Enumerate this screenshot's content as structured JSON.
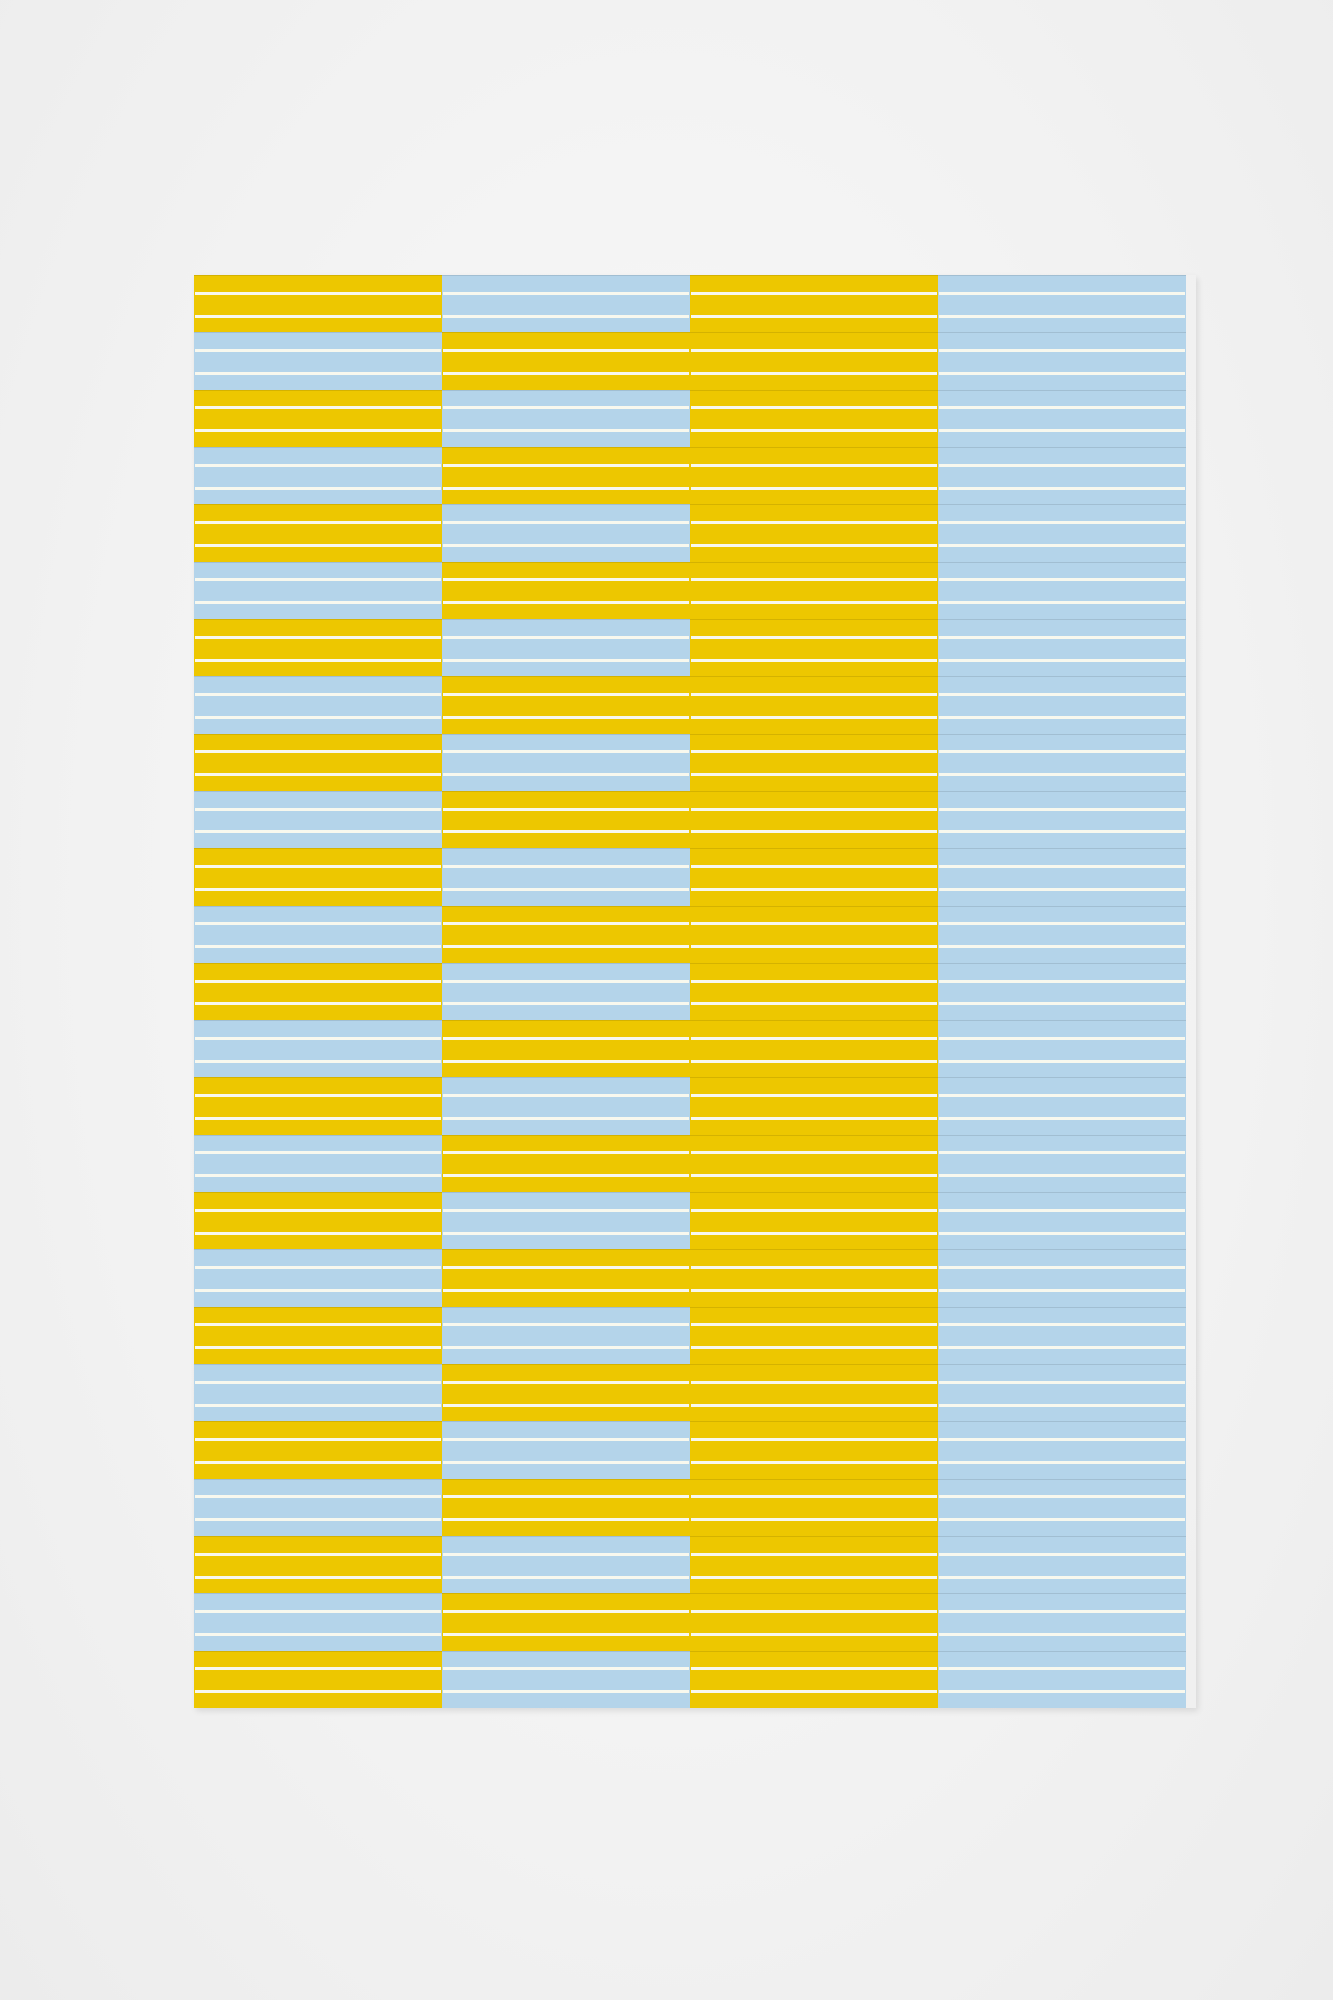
{
  "colors": {
    "yellow": "#edc700",
    "blue": "#b4d4ea",
    "line": "#f8f8ee",
    "wall": "#f3f3f3"
  },
  "artwork": {
    "panels": [
      {
        "rows": [
          "Y",
          "B",
          "Y",
          "B",
          "Y",
          "B",
          "Y",
          "B",
          "Y",
          "B",
          "Y",
          "B",
          "Y",
          "B",
          "Y",
          "B",
          "Y",
          "B",
          "Y",
          "B",
          "Y",
          "B",
          "Y",
          "B",
          "Y"
        ]
      },
      {
        "rows": [
          "B",
          "Y",
          "B",
          "Y",
          "B",
          "Y",
          "B",
          "Y",
          "B",
          "Y",
          "B",
          "Y",
          "B",
          "Y",
          "B",
          "Y",
          "B",
          "Y",
          "B",
          "Y",
          "B",
          "Y",
          "B",
          "Y",
          "B"
        ]
      },
      {
        "rows": [
          "Y",
          "Y",
          "Y",
          "Y",
          "Y",
          "Y",
          "Y",
          "Y",
          "Y",
          "Y",
          "Y",
          "Y",
          "Y",
          "Y",
          "Y",
          "Y",
          "Y",
          "Y",
          "Y",
          "Y",
          "Y",
          "Y",
          "Y",
          "Y",
          "Y"
        ]
      },
      {
        "rows": [
          "B",
          "B",
          "B",
          "B",
          "B",
          "B",
          "B",
          "B",
          "B",
          "B",
          "B",
          "B",
          "B",
          "B",
          "B",
          "B",
          "B",
          "B",
          "B",
          "B",
          "B",
          "B",
          "B",
          "B",
          "B"
        ]
      }
    ]
  }
}
